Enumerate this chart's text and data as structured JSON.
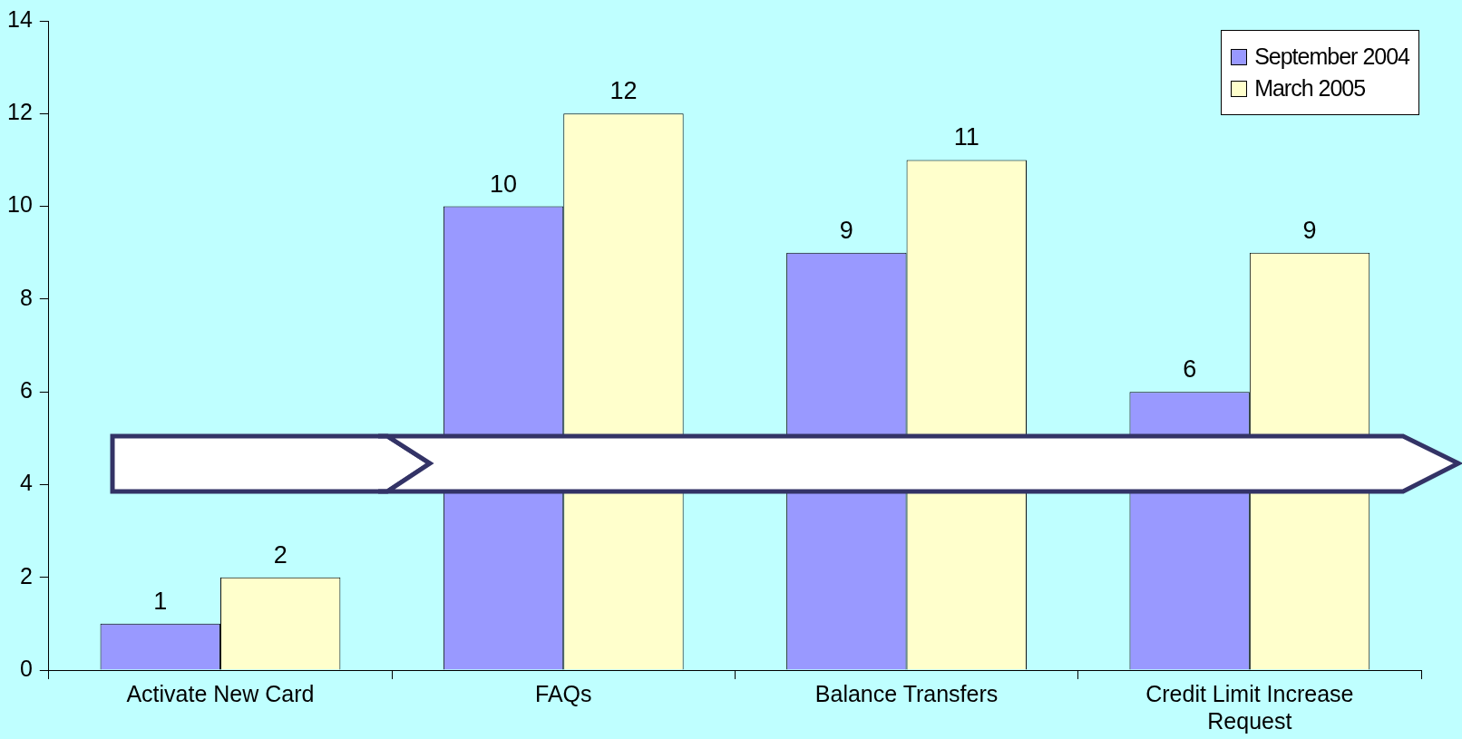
{
  "chart_data": {
    "type": "bar",
    "categories": [
      "Activate New Card",
      "FAQs",
      "Balance Transfers",
      "Credit Limit Increase Request"
    ],
    "series": [
      {
        "name": "September 2004",
        "color": "#9999ff",
        "values": [
          1,
          10,
          9,
          6
        ]
      },
      {
        "name": "March 2005",
        "color": "#ffffcc",
        "values": [
          2,
          12,
          11,
          9
        ]
      }
    ],
    "ylim": [
      0,
      14
    ],
    "yticks": [
      0,
      2,
      4,
      6,
      8,
      10,
      12,
      14
    ],
    "data_labels": true,
    "legend": "top right"
  }
}
